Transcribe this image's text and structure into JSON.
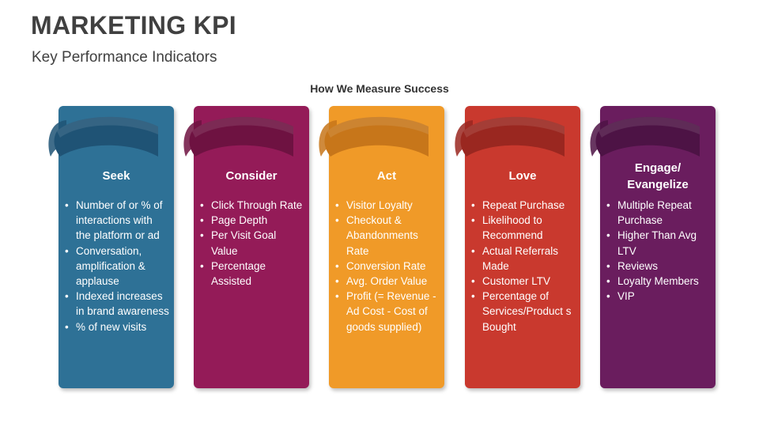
{
  "header": {
    "title": "MARKETING KPI",
    "subtitle": "Key Performance Indicators"
  },
  "section_heading": "How We Measure Success",
  "columns": [
    {
      "title": "Seek",
      "color": "#2E7196",
      "ribbon_color": "#1F5375",
      "items": [
        "Number of or % of interactions with the platform or ad",
        "Conversation, amplification & applause",
        "Indexed increases in brand awareness",
        "% of new visits"
      ]
    },
    {
      "title": "Consider",
      "color": "#941B58",
      "ribbon_color": "#6E1241",
      "items": [
        "Click Through Rate",
        "Page Depth",
        "Per Visit Goal Value",
        "Percentage Assisted"
      ]
    },
    {
      "title": "Act",
      "color": "#F09A28",
      "ribbon_color": "#C7761A",
      "items": [
        "Visitor Loyalty",
        "Checkout & Abandonments Rate",
        "Conversion Rate",
        "Avg. Order Value",
        "Profit (= Revenue - Ad Cost - Cost of goods supplied)"
      ]
    },
    {
      "title": "Love",
      "color": "#C9392E",
      "ribbon_color": "#9A2720",
      "items": [
        "Repeat Purchase",
        "Likelihood to Recommend",
        "Actual Referrals Made",
        "Customer LTV",
        "Percentage of Services/Product s Bought"
      ]
    },
    {
      "title": "Engage/ Evangelize",
      "color": "#6A1D5E",
      "ribbon_color": "#4D1345",
      "items": [
        "Multiple Repeat Purchase",
        "Higher Than Avg LTV",
        "Reviews",
        "Loyalty Members",
        "VIP"
      ]
    }
  ]
}
